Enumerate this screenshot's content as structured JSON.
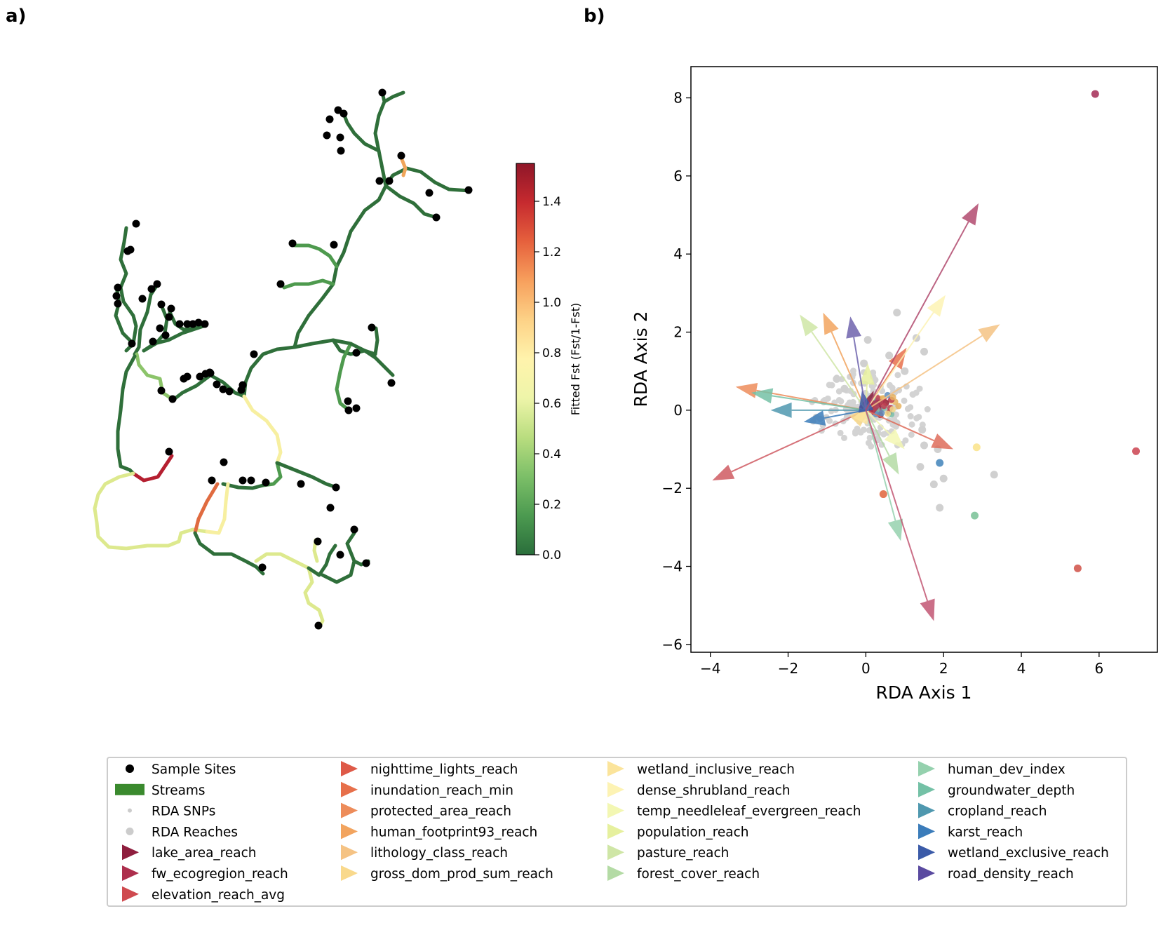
{
  "panels": {
    "a": "a)",
    "b": "b)"
  },
  "colorbar": {
    "label": "Fitted Fst (Fst/1-Fst)",
    "range": [
      0.0,
      1.55
    ],
    "ticks": [
      0.0,
      0.2,
      0.4,
      0.6,
      0.8,
      1.0,
      1.2,
      1.4
    ],
    "tick_labels": [
      "0.0",
      "0.2",
      "0.4",
      "0.6",
      "0.8",
      "1.0",
      "1.2",
      "1.4"
    ],
    "colormap": [
      "#2a6e3b",
      "#4c9a50",
      "#7cbf68",
      "#b9dd7f",
      "#eef5a9",
      "#fff3ac",
      "#fdd287",
      "#f7a05d",
      "#e6613d",
      "#c62a2f",
      "#8f1628"
    ]
  },
  "chart_data": [
    {
      "type": "map",
      "panel": "a)",
      "description_color_by": "Fitted Fst (Fst/1-Fst)"
    },
    {
      "type": "scatter",
      "panel": "b)",
      "xlabel": "RDA Axis 1",
      "ylabel": "RDA Axis 2",
      "xlim": [
        -4.5,
        7.5
      ],
      "ylim": [
        -6.2,
        8.8
      ],
      "xticks": [
        -4,
        -2,
        0,
        2,
        4,
        6
      ],
      "xtick_labels": [
        "−4",
        "−2",
        "0",
        "2",
        "4",
        "6"
      ],
      "yticks": [
        -6,
        -4,
        -2,
        0,
        2,
        4,
        6,
        8
      ],
      "ytick_labels": [
        "−6",
        "−4",
        "−2",
        "0",
        "2",
        "4",
        "6",
        "8"
      ],
      "reach_points": [
        {
          "x": 5.9,
          "y": 8.1,
          "color": "#b14a6e"
        },
        {
          "x": 6.95,
          "y": -1.05,
          "color": "#d35f6a"
        },
        {
          "x": 5.45,
          "y": -4.05,
          "color": "#d76a62"
        },
        {
          "x": 2.85,
          "y": -0.95,
          "color": "#fbe79a"
        },
        {
          "x": 1.9,
          "y": -1.35,
          "color": "#5c95c4"
        },
        {
          "x": 2.8,
          "y": -2.7,
          "color": "#8ccaa5"
        },
        {
          "x": 0.45,
          "y": -2.15,
          "color": "#e57b58"
        },
        {
          "x": 3.3,
          "y": -1.65,
          "color": "#d0d0d0"
        },
        {
          "x": 1.9,
          "y": -2.5,
          "color": "#d0d0d0"
        },
        {
          "x": 1.85,
          "y": -1.0,
          "color": "#d0d0d0"
        },
        {
          "x": 2.0,
          "y": -1.75,
          "color": "#d0d0d0"
        },
        {
          "x": 1.75,
          "y": -1.9,
          "color": "#d0d0d0"
        },
        {
          "x": 1.4,
          "y": -1.45,
          "color": "#d0d0d0"
        },
        {
          "x": 1.45,
          "y": -0.5,
          "color": "#d0d0d0"
        },
        {
          "x": 0.8,
          "y": 2.5,
          "color": "#d0d0d0"
        },
        {
          "x": 1.3,
          "y": 1.85,
          "color": "#d0d0d0"
        },
        {
          "x": 1.5,
          "y": 1.5,
          "color": "#d0d0d0"
        },
        {
          "x": 0.05,
          "y": 1.8,
          "color": "#d0d0d0"
        },
        {
          "x": -0.05,
          "y": 1.2,
          "color": "#d0d0d0"
        },
        {
          "x": 0.6,
          "y": 1.4,
          "color": "#d0d0d0"
        },
        {
          "x": 1.0,
          "y": 1.0,
          "color": "#d0d0d0"
        },
        {
          "x": -0.75,
          "y": 0.8,
          "color": "#d0d0d0"
        },
        {
          "x": -0.55,
          "y": 0.55,
          "color": "#d0d0d0"
        },
        {
          "x": 1.5,
          "y": -0.9,
          "color": "#d0d0d0"
        },
        {
          "x": 0.3,
          "y": -0.75,
          "color": "#d0d0d0"
        }
      ],
      "arrows": [
        {
          "name": "lake_area_reach",
          "x": 0.2,
          "y": 0.5,
          "color": "#8f1e3e"
        },
        {
          "name": "fw_ecogregion_reach",
          "x": 0.55,
          "y": 0.3,
          "color": "#ad2f4d"
        },
        {
          "name": "elevation_reach_avg",
          "x": -3.95,
          "y": -1.8,
          "color": "#cf5a62"
        },
        {
          "name": "nighttime_lights_reach",
          "x": 2.25,
          "y": -1.0,
          "color": "#de6c5a"
        },
        {
          "name": "inundation_reach_min",
          "x": 1.05,
          "y": 1.6,
          "color": "#e7704b"
        },
        {
          "name": "protected_area_reach",
          "x": -3.35,
          "y": 0.6,
          "color": "#ed8c5a"
        },
        {
          "name": "human_footprint93_reach",
          "x": -1.1,
          "y": 2.5,
          "color": "#f2a45f"
        },
        {
          "name": "lithology_class_reach",
          "x": 3.45,
          "y": 2.2,
          "color": "#f5c384"
        },
        {
          "name": "gross_dom_prod_sum_reach",
          "x": 0.1,
          "y": 0.1,
          "color": "#f9d98c"
        },
        {
          "name": "wetland_inclusive_reach",
          "x": 0.1,
          "y": 0.2,
          "color": "#fbe49b"
        },
        {
          "name": "dense_shrubland_reach",
          "x": 2.05,
          "y": 2.95,
          "color": "#fdf3b4"
        },
        {
          "name": "temp_needleleaf_evergreen_reach",
          "x": 1.0,
          "y": -1.0,
          "color": "#f3f7b3"
        },
        {
          "name": "population_reach",
          "x": 0.05,
          "y": 1.2,
          "color": "#e6f09e"
        },
        {
          "name": "pasture_reach",
          "x": -1.7,
          "y": 2.45,
          "color": "#cfe6a6"
        },
        {
          "name": "forest_cover_reach",
          "x": 0.85,
          "y": -1.65,
          "color": "#b4dba5"
        },
        {
          "name": "human_dev_index",
          "x": 0.9,
          "y": -3.35,
          "color": "#95d1ae"
        },
        {
          "name": "groundwater_depth",
          "x": -2.95,
          "y": 0.45,
          "color": "#74c1a6"
        },
        {
          "name": "cropland_reach",
          "x": -2.45,
          "y": 0.0,
          "color": "#4f98af"
        },
        {
          "name": "karst_reach",
          "x": -1.6,
          "y": -0.3,
          "color": "#3b7cba"
        },
        {
          "name": "wetland_exclusive_reach",
          "x": -0.1,
          "y": 0.5,
          "color": "#3b5ba8"
        },
        {
          "name": "road_density_reach",
          "x": -0.4,
          "y": 2.4,
          "color": "#6e63ad"
        },
        {
          "name": "elevation_reach_avg_neg",
          "x": 1.75,
          "y": -5.4,
          "color": "#c25673"
        },
        {
          "name": "lake_area_reach_pos",
          "x": 2.9,
          "y": 5.3,
          "color": "#b14a6e"
        }
      ]
    }
  ],
  "legend": {
    "columns": [
      [
        {
          "label": "Sample Sites",
          "marker": "dot",
          "color": "#000000"
        },
        {
          "label": "Streams",
          "marker": "band",
          "color": "#3a8a2e"
        },
        {
          "label": "RDA SNPs",
          "marker": "small-dot",
          "color": "#cccccc"
        },
        {
          "label": "RDA Reaches",
          "marker": "mid-dot",
          "color": "#cccccc"
        },
        {
          "label": "lake_area_reach",
          "marker": "triangle",
          "color": "#8f1e3e"
        },
        {
          "label": "fw_ecogregion_reach",
          "marker": "triangle",
          "color": "#ad2f4d"
        },
        {
          "label": "elevation_reach_avg",
          "marker": "triangle",
          "color": "#cf4a4f"
        }
      ],
      [
        {
          "label": "nighttime_lights_reach",
          "marker": "triangle",
          "color": "#de5a48"
        },
        {
          "label": "inundation_reach_min",
          "marker": "triangle",
          "color": "#e7704b"
        },
        {
          "label": "protected_area_reach",
          "marker": "triangle",
          "color": "#ed8c5a"
        },
        {
          "label": "human_footprint93_reach",
          "marker": "triangle",
          "color": "#f2a45f"
        },
        {
          "label": "lithology_class_reach",
          "marker": "triangle",
          "color": "#f5c384"
        },
        {
          "label": "gross_dom_prod_sum_reach",
          "marker": "triangle",
          "color": "#f9d98c"
        }
      ],
      [
        {
          "label": "wetland_inclusive_reach",
          "marker": "triangle",
          "color": "#fbe49b"
        },
        {
          "label": "dense_shrubland_reach",
          "marker": "triangle",
          "color": "#fdf3b4"
        },
        {
          "label": "temp_needleleaf_evergreen_reach",
          "marker": "triangle",
          "color": "#f3f7b3"
        },
        {
          "label": "population_reach",
          "marker": "triangle",
          "color": "#e6f09e"
        },
        {
          "label": "pasture_reach",
          "marker": "triangle",
          "color": "#cfe6a6"
        },
        {
          "label": "forest_cover_reach",
          "marker": "triangle",
          "color": "#b4dba5"
        }
      ],
      [
        {
          "label": "human_dev_index",
          "marker": "triangle",
          "color": "#95d1ae"
        },
        {
          "label": "groundwater_depth",
          "marker": "triangle",
          "color": "#74c1a6"
        },
        {
          "label": "cropland_reach",
          "marker": "triangle",
          "color": "#4f98af"
        },
        {
          "label": "karst_reach",
          "marker": "triangle",
          "color": "#3b7cba"
        },
        {
          "label": "wetland_exclusive_reach",
          "marker": "triangle",
          "color": "#3b5ba8"
        },
        {
          "label": "road_density_reach",
          "marker": "triangle",
          "color": "#5a4aa0"
        }
      ]
    ]
  }
}
